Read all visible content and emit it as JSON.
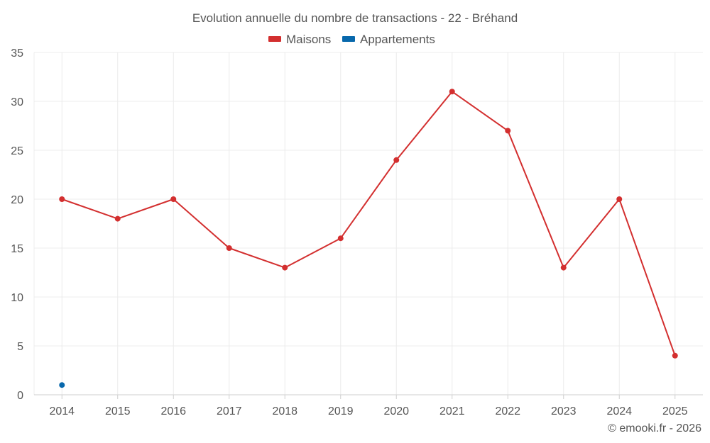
{
  "chart_data": {
    "type": "line",
    "title": "Evolution annuelle du nombre de transactions - 22 - Bréhand",
    "categories": [
      "2014",
      "2015",
      "2016",
      "2017",
      "2018",
      "2019",
      "2020",
      "2021",
      "2022",
      "2023",
      "2024",
      "2025"
    ],
    "series": [
      {
        "name": "Maisons",
        "color": "#d32f2f",
        "values": [
          20,
          18,
          20,
          15,
          13,
          16,
          24,
          31,
          27,
          13,
          20,
          4
        ]
      },
      {
        "name": "Appartements",
        "color": "#0868ac",
        "values": [
          1,
          null,
          null,
          null,
          null,
          null,
          null,
          null,
          null,
          null,
          null,
          null
        ]
      }
    ],
    "ylim": [
      0,
      35
    ],
    "yticks": [
      0,
      5,
      10,
      15,
      20,
      25,
      30,
      35
    ],
    "xlabel": "",
    "ylabel": "",
    "grid": true,
    "legend_position": "top-center"
  },
  "credit": "© emooki.fr - 2026"
}
